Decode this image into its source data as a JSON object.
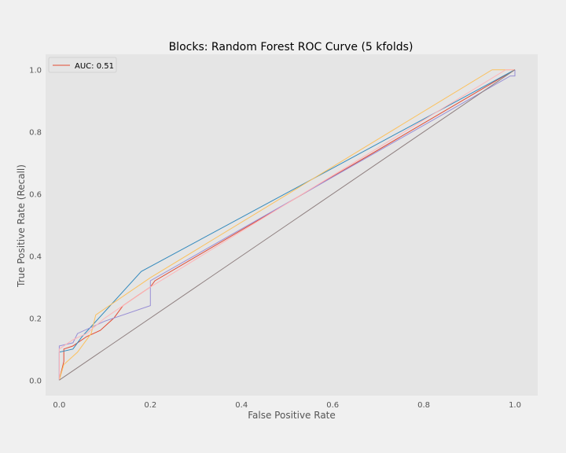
{
  "chart_data": {
    "type": "line",
    "title": "Blocks: Random Forest ROC Curve (5 kfolds)",
    "xlabel": "False Positive Rate",
    "ylabel": "True Positive Rate (Recall)",
    "xlim": [
      -0.03,
      1.05
    ],
    "ylim": [
      -0.05,
      1.05
    ],
    "xticks": [
      "0.0",
      "0.2",
      "0.4",
      "0.6",
      "0.8",
      "1.0"
    ],
    "yticks": [
      "0.0",
      "0.2",
      "0.4",
      "0.6",
      "0.8",
      "1.0"
    ],
    "grid": false,
    "legend": {
      "position": "top-left",
      "entries": [
        "AUC: 0.51"
      ]
    },
    "series": [
      {
        "name": "AUC: 0.51",
        "color": "#E24A33",
        "points": [
          [
            0.0,
            0.0
          ],
          [
            0.01,
            0.06
          ],
          [
            0.01,
            0.1
          ],
          [
            0.03,
            0.11
          ],
          [
            0.06,
            0.14
          ],
          [
            0.09,
            0.16
          ],
          [
            0.12,
            0.2
          ],
          [
            0.14,
            0.24
          ],
          [
            0.17,
            0.27
          ],
          [
            0.2,
            0.3
          ],
          [
            0.21,
            0.32
          ],
          [
            1.0,
            1.0
          ]
        ]
      },
      {
        "color": "#348ABD",
        "points": [
          [
            0.0,
            0.0
          ],
          [
            0.0,
            0.09
          ],
          [
            0.03,
            0.1
          ],
          [
            0.05,
            0.14
          ],
          [
            0.18,
            0.35
          ],
          [
            1.0,
            1.0
          ]
        ]
      },
      {
        "color": "#988ED5",
        "points": [
          [
            0.0,
            0.0
          ],
          [
            0.0,
            0.11
          ],
          [
            0.03,
            0.12
          ],
          [
            0.04,
            0.15
          ],
          [
            0.1,
            0.19
          ],
          [
            0.2,
            0.24
          ],
          [
            0.2,
            0.27
          ],
          [
            0.2,
            0.32
          ],
          [
            0.99,
            0.98
          ],
          [
            1.0,
            0.98
          ],
          [
            1.0,
            1.0
          ]
        ]
      },
      {
        "color": "#FBC15E",
        "points": [
          [
            0.0,
            0.0
          ],
          [
            0.01,
            0.05
          ],
          [
            0.04,
            0.09
          ],
          [
            0.07,
            0.15
          ],
          [
            0.08,
            0.21
          ],
          [
            0.1,
            0.23
          ],
          [
            0.2,
            0.33
          ],
          [
            0.95,
            1.0
          ],
          [
            1.0,
            1.0
          ]
        ]
      },
      {
        "color": "#FFB5B8",
        "points": [
          [
            0.0,
            0.0
          ],
          [
            0.0,
            0.1
          ],
          [
            0.03,
            0.13
          ],
          [
            0.06,
            0.15
          ],
          [
            0.1,
            0.2
          ],
          [
            0.2,
            0.3
          ],
          [
            0.98,
            1.0
          ],
          [
            1.0,
            1.0
          ]
        ]
      },
      {
        "color": "#8E7F7F",
        "points": [
          [
            0.0,
            0.0
          ],
          [
            1.0,
            1.0
          ]
        ]
      }
    ]
  }
}
